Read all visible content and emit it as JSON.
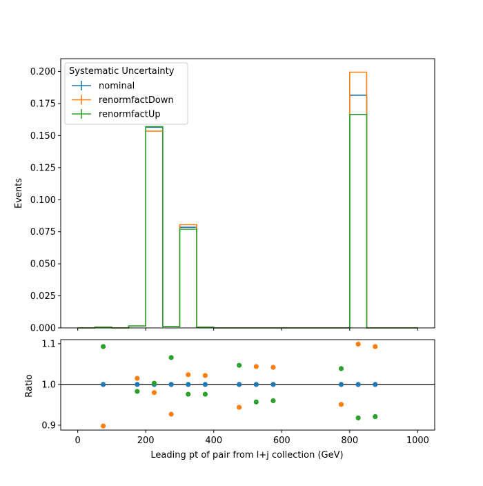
{
  "colors": {
    "nominal": "#1f77b4",
    "renormfactDown": "#ff7f0e",
    "renormfactUp": "#2ca02c"
  },
  "chart_data": [
    {
      "type": "line",
      "subtype": "step-histogram",
      "ylabel": "Events",
      "xlim": [
        -50,
        1050
      ],
      "ylim": [
        0,
        0.21
      ],
      "bin_edges": [
        0,
        50,
        100,
        150,
        200,
        250,
        300,
        350,
        400,
        450,
        500,
        550,
        600,
        650,
        700,
        750,
        800,
        850,
        900,
        950,
        1000
      ],
      "yticks": [
        0.0,
        0.025,
        0.05,
        0.075,
        0.1,
        0.125,
        0.15,
        0.175,
        0.2
      ],
      "ytick_labels": [
        "0.000",
        "0.025",
        "0.050",
        "0.075",
        "0.100",
        "0.125",
        "0.150",
        "0.175",
        "0.200"
      ],
      "legend": {
        "title": "Systematic Uncertainty",
        "position": "upper-left"
      },
      "series": [
        {
          "name": "nominal",
          "color_key": "nominal",
          "values": [
            0,
            0.0005,
            0,
            0.0015,
            0.1565,
            0.001,
            0.0785,
            0.0005,
            0,
            0,
            0,
            0,
            0,
            0,
            0,
            0,
            0.1815,
            0,
            0,
            0
          ]
        },
        {
          "name": "renormfactDown",
          "color_key": "renormfactDown",
          "values": [
            0,
            0.0005,
            0,
            0.0015,
            0.1535,
            0.001,
            0.0805,
            0.0005,
            0,
            0,
            0,
            0,
            0,
            0,
            0,
            0,
            0.1995,
            0,
            0,
            0
          ]
        },
        {
          "name": "renormfactUp",
          "color_key": "renormfactUp",
          "values": [
            0,
            0.0005,
            0,
            0.0015,
            0.157,
            0.001,
            0.077,
            0.0005,
            0,
            0,
            0,
            0,
            0,
            0,
            0,
            0,
            0.1665,
            0,
            0,
            0
          ]
        }
      ]
    },
    {
      "type": "scatter",
      "xlabel": "Leading pt of pair from l+j collection (GeV)",
      "ylabel": "Ratio",
      "xlim": [
        -50,
        1050
      ],
      "ylim": [
        0.888,
        1.11
      ],
      "xticks": [
        0,
        200,
        400,
        600,
        800,
        1000
      ],
      "xtick_labels": [
        "0",
        "200",
        "400",
        "600",
        "800",
        "1000"
      ],
      "yticks": [
        0.9,
        1.0,
        1.1
      ],
      "ytick_labels": [
        "0.9",
        "1.0",
        "1.1"
      ],
      "reference_line": 1.0,
      "series": [
        {
          "name": "nominal",
          "color_key": "nominal",
          "x": [
            75,
            175,
            225,
            275,
            325,
            375,
            475,
            525,
            575,
            775,
            825,
            875
          ],
          "y": [
            1.0,
            1.0,
            1.0,
            1.0,
            1.0,
            1.0,
            1.0,
            1.0,
            1.0,
            1.0,
            1.0,
            1.0
          ]
        },
        {
          "name": "renormfactDown",
          "color_key": "renormfactDown",
          "x": [
            75,
            175,
            225,
            275,
            325,
            375,
            475,
            525,
            575,
            775,
            825,
            875
          ],
          "y": [
            0.898,
            1.015,
            0.98,
            0.927,
            1.024,
            1.022,
            0.944,
            1.044,
            1.042,
            0.951,
            1.099,
            1.093
          ]
        },
        {
          "name": "renormfactUp",
          "color_key": "renormfactUp",
          "x": [
            75,
            175,
            225,
            275,
            325,
            375,
            475,
            525,
            575,
            775,
            825,
            875
          ],
          "y": [
            1.093,
            0.983,
            1.003,
            1.066,
            0.976,
            0.976,
            1.047,
            0.957,
            0.96,
            1.039,
            0.918,
            0.921
          ]
        }
      ]
    }
  ]
}
